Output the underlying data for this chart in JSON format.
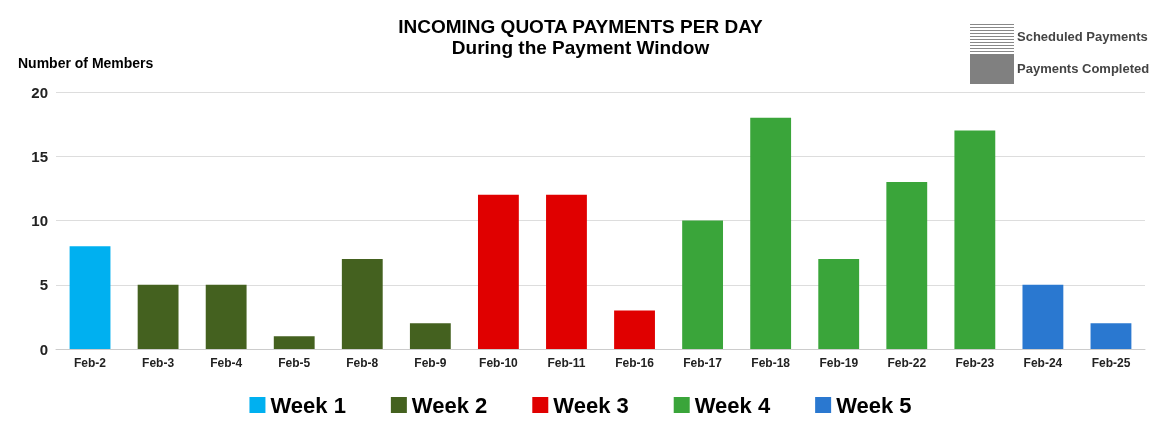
{
  "chart_data": {
    "type": "bar",
    "title": "INCOMING QUOTA PAYMENTS PER DAY",
    "subtitle": "During the Payment Window",
    "ylabel": "Number of Members",
    "categories": [
      "Feb-2",
      "Feb-3",
      "Feb-4",
      "Feb-5",
      "Feb-8",
      "Feb-9",
      "Feb-10",
      "Feb-11",
      "Feb-16",
      "Feb-17",
      "Feb-18",
      "Feb-19",
      "Feb-22",
      "Feb-23",
      "Feb-24",
      "Feb-25"
    ],
    "stacked": true,
    "series": [
      {
        "name": "Week 1",
        "color": "#00b0f0",
        "values": [
          8,
          null,
          null,
          null,
          null,
          null,
          null,
          null,
          null,
          null,
          null,
          null,
          null,
          null,
          null,
          null
        ]
      },
      {
        "name": "Week 2",
        "color": "#44611f",
        "values": [
          null,
          5,
          5,
          1,
          7,
          2,
          null,
          null,
          null,
          null,
          null,
          null,
          null,
          null,
          null,
          null
        ]
      },
      {
        "name": "Week 3",
        "color": "#e00000",
        "values": [
          null,
          null,
          null,
          null,
          null,
          null,
          12,
          12,
          3,
          null,
          null,
          null,
          null,
          null,
          null,
          null
        ]
      },
      {
        "name": "Week 4",
        "color": "#3aa53a",
        "values": [
          null,
          null,
          null,
          null,
          null,
          null,
          null,
          null,
          null,
          10,
          18,
          7,
          13,
          17,
          null,
          null
        ]
      },
      {
        "name": "Week 5",
        "color": "#2a78d0",
        "values": [
          null,
          null,
          null,
          null,
          null,
          null,
          null,
          null,
          null,
          null,
          null,
          null,
          null,
          null,
          5,
          2
        ]
      }
    ],
    "ylim": [
      0,
      20
    ],
    "yticks": [
      0,
      5,
      10,
      15,
      20
    ],
    "grid": "y",
    "legend": "bottom",
    "annotations": [
      "Scheduled Payments",
      "Payments Completed"
    ]
  }
}
